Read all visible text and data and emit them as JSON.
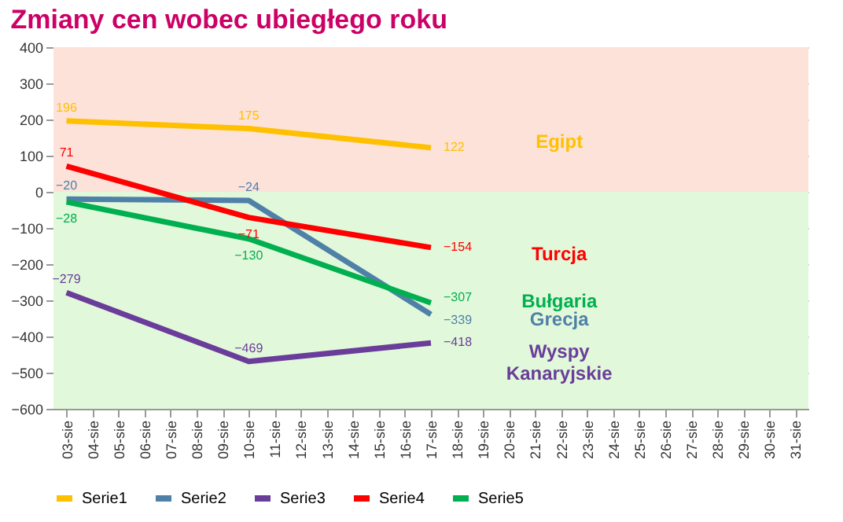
{
  "chart_data": {
    "type": "line",
    "title": "Zmiany cen wobec ubiegłego roku",
    "categories": [
      "03-sie",
      "04-sie",
      "05-sie",
      "06-sie",
      "07-sie",
      "08-sie",
      "09-sie",
      "10-sie",
      "11-sie",
      "12-sie",
      "13-sie",
      "14-sie",
      "15-sie",
      "16-sie",
      "17-sie",
      "18-sie",
      "19-sie",
      "20-sie",
      "21-sie",
      "22-sie",
      "23-sie",
      "24-sie",
      "25-sie",
      "26-sie",
      "27-sie",
      "28-sie",
      "29-sie",
      "30-sie",
      "31-sie"
    ],
    "series": [
      {
        "name": "Serie1",
        "color": "#ffc000",
        "values": [
          196,
          null,
          null,
          null,
          null,
          null,
          null,
          175,
          null,
          null,
          null,
          null,
          null,
          null,
          122,
          null,
          null,
          null,
          null,
          null,
          null,
          null,
          null,
          null,
          null,
          null,
          null,
          null,
          null
        ]
      },
      {
        "name": "Serie2",
        "color": "#4f81a8",
        "values": [
          -20,
          null,
          null,
          null,
          null,
          null,
          null,
          -24,
          null,
          null,
          null,
          null,
          null,
          null,
          -339,
          null,
          null,
          null,
          null,
          null,
          null,
          null,
          null,
          null,
          null,
          null,
          null,
          null,
          null
        ]
      },
      {
        "name": "Serie3",
        "color": "#6a3d9a",
        "values": [
          -279,
          null,
          null,
          null,
          null,
          null,
          null,
          -469,
          null,
          null,
          null,
          null,
          null,
          null,
          -418,
          null,
          null,
          null,
          null,
          null,
          null,
          null,
          null,
          null,
          null,
          null,
          null,
          null,
          null
        ]
      },
      {
        "name": "Serie4",
        "color": "#ff0000",
        "values": [
          71,
          null,
          null,
          null,
          null,
          null,
          null,
          -71,
          null,
          null,
          null,
          null,
          null,
          null,
          -154,
          null,
          null,
          null,
          null,
          null,
          null,
          null,
          null,
          null,
          null,
          null,
          null,
          null,
          null
        ]
      },
      {
        "name": "Serie5",
        "color": "#00b050",
        "values": [
          -28,
          null,
          null,
          null,
          null,
          null,
          null,
          -130,
          null,
          null,
          null,
          null,
          null,
          null,
          -307,
          null,
          null,
          null,
          null,
          null,
          null,
          null,
          null,
          null,
          null,
          null,
          null,
          null,
          null
        ]
      }
    ],
    "annotations": [
      "Egipt",
      "Grecja",
      "Wyspy Kanaryjskie",
      "Turcja",
      "Bułgaria"
    ],
    "bands": [
      {
        "axis": "y",
        "from": 0,
        "to": 400,
        "color": "#fde2da"
      },
      {
        "axis": "y",
        "from": -600,
        "to": 0,
        "color": "#e2f8da"
      }
    ],
    "ylim": [
      -600,
      400
    ],
    "yticks": [
      -600,
      -500,
      -400,
      -300,
      -200,
      -100,
      0,
      100,
      200,
      300,
      400
    ],
    "data_labels": true,
    "grid": "y",
    "legend": "bottom",
    "marker": "none",
    "line_style": "solid"
  }
}
